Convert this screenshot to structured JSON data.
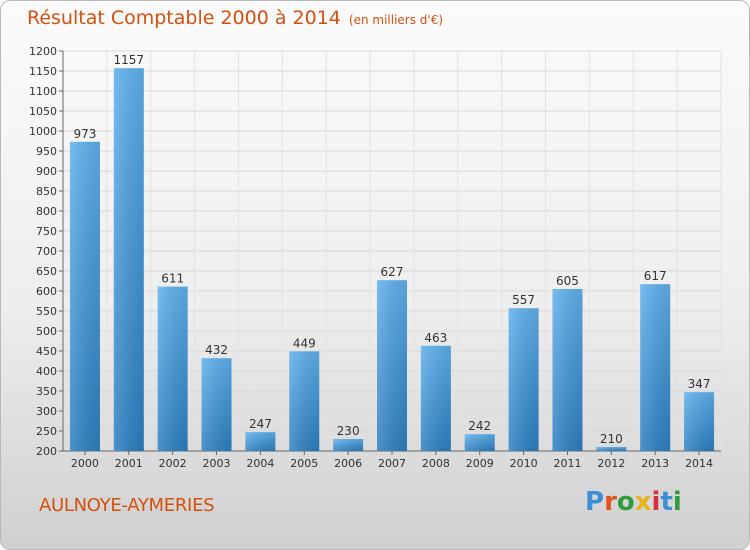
{
  "page": {
    "title": "Résultat Comptable 2000 à 2014",
    "subtitle": "(en milliers d'€)",
    "commune": "AULNOYE-AYMERIES",
    "logo": "Proxiti",
    "colors": {
      "accent": "#d4500e",
      "bar_light": "#5fb0ec",
      "bar_dark": "#2c7fc0"
    }
  },
  "chart_data": {
    "type": "bar",
    "title": "Résultat Comptable 2000 à 2014",
    "subtitle": "(en milliers d'€)",
    "categories": [
      "2000",
      "2001",
      "2002",
      "2003",
      "2004",
      "2005",
      "2006",
      "2007",
      "2008",
      "2009",
      "2010",
      "2011",
      "2012",
      "2013",
      "2014"
    ],
    "values": [
      973,
      1157,
      611,
      432,
      247,
      449,
      230,
      627,
      463,
      242,
      557,
      605,
      210,
      617,
      347
    ],
    "ylim": [
      200,
      1200
    ],
    "yticks": [
      200,
      250,
      300,
      350,
      400,
      450,
      500,
      550,
      600,
      650,
      700,
      750,
      800,
      850,
      900,
      950,
      1000,
      1050,
      1100,
      1150,
      1200
    ],
    "grid": true,
    "data_labels": true
  }
}
